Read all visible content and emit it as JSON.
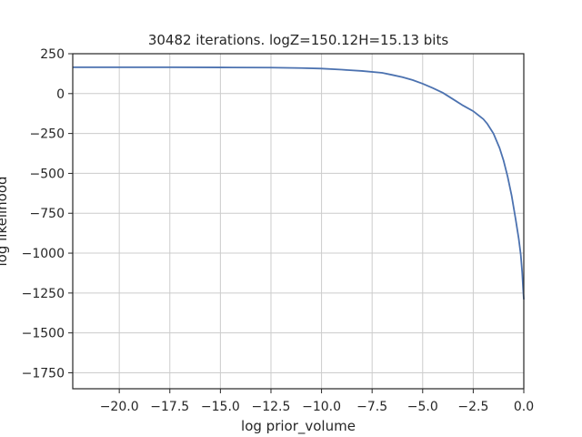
{
  "chart_data": {
    "type": "line",
    "title": "30482 iterations. logZ=150.12H=15.13 bits",
    "xlabel": "log prior_volume",
    "ylabel": "log likelihood",
    "xlim": [
      -22.3,
      0
    ],
    "ylim": [
      -1850,
      250
    ],
    "xticks": [
      -20.0,
      -17.5,
      -15.0,
      -12.5,
      -10.0,
      -7.5,
      -5.0,
      -2.5,
      0.0
    ],
    "xtick_labels": [
      "−20.0",
      "−17.5",
      "−15.0",
      "−12.5",
      "−10.0",
      "−7.5",
      "−5.0",
      "−2.5",
      "0.0"
    ],
    "yticks": [
      250,
      0,
      -250,
      -500,
      -750,
      -1000,
      -1250,
      -1500,
      -1750
    ],
    "ytick_labels": [
      "250",
      "0",
      "−250",
      "−500",
      "−750",
      "−1000",
      "−1250",
      "−1500",
      "−1750"
    ],
    "grid": true,
    "line_color": "#4c72b0",
    "series": [
      {
        "x": [
          -22.3,
          -20.0,
          -17.5,
          -15.0,
          -12.5,
          -11.0,
          -10.0,
          -9.0,
          -8.0,
          -7.0,
          -6.5,
          -6.0,
          -5.5,
          -5.0,
          -4.5,
          -4.0,
          -3.5,
          -3.0,
          -2.5,
          -2.0,
          -1.8,
          -1.5,
          -1.2,
          -1.0,
          -0.8,
          -0.6,
          -0.4,
          -0.25,
          -0.15,
          -0.08,
          -0.03,
          0.0
        ],
        "y": [
          165,
          165,
          165,
          164,
          163,
          160,
          157,
          150,
          142,
          130,
          117,
          103,
          85,
          62,
          35,
          5,
          -35,
          -75,
          -110,
          -160,
          -190,
          -250,
          -340,
          -420,
          -520,
          -640,
          -790,
          -910,
          -1010,
          -1120,
          -1230,
          -1290
        ]
      }
    ]
  }
}
